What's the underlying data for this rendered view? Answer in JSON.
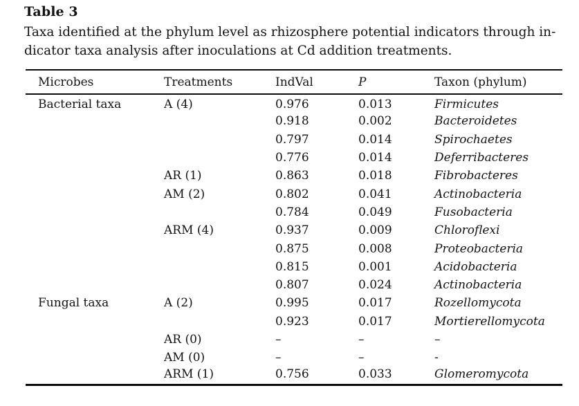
{
  "title": "Table 3",
  "caption": {
    "line1": "Taxa identified at the phylum level as rhizosphere potential indicators through in-",
    "line2": "dicator taxa analysis after inoculations at Cd addition treatments."
  },
  "table": {
    "columns": [
      "Microbes",
      "Treatments",
      "IndVal",
      "P",
      "Taxon (phylum)"
    ],
    "rows": [
      {
        "microbes": "Bacterial taxa",
        "treatment": "A (4)",
        "indval": "0.976",
        "p": "0.013",
        "taxon": "Firmicutes"
      },
      {
        "microbes": "",
        "treatment": "",
        "indval": "0.918",
        "p": "0.002",
        "taxon": "Bacteroidetes"
      },
      {
        "microbes": "",
        "treatment": "",
        "indval": "0.797",
        "p": "0.014",
        "taxon": "Spirochaetes"
      },
      {
        "microbes": "",
        "treatment": "",
        "indval": "0.776",
        "p": "0.014",
        "taxon": "Deferribacteres"
      },
      {
        "microbes": "",
        "treatment": "AR (1)",
        "indval": "0.863",
        "p": "0.018",
        "taxon": "Fibrobacteres"
      },
      {
        "microbes": "",
        "treatment": "AM (2)",
        "indval": "0.802",
        "p": "0.041",
        "taxon": "Actinobacteria"
      },
      {
        "microbes": "",
        "treatment": "",
        "indval": "0.784",
        "p": "0.049",
        "taxon": "Fusobacteria"
      },
      {
        "microbes": "",
        "treatment": "ARM (4)",
        "indval": "0.937",
        "p": "0.009",
        "taxon": "Chloroflexi"
      },
      {
        "microbes": "",
        "treatment": "",
        "indval": "0.875",
        "p": "0.008",
        "taxon": "Proteobacteria"
      },
      {
        "microbes": "",
        "treatment": "",
        "indval": "0.815",
        "p": "0.001",
        "taxon": "Acidobacteria"
      },
      {
        "microbes": "",
        "treatment": "",
        "indval": "0.807",
        "p": "0.024",
        "taxon": "Actinobacteria"
      },
      {
        "microbes": "Fungal taxa",
        "treatment": "A (2)",
        "indval": "0.995",
        "p": "0.017",
        "taxon": "Rozellomycota"
      },
      {
        "microbes": "",
        "treatment": "",
        "indval": "0.923",
        "p": "0.017",
        "taxon": "Mortierellomycota"
      },
      {
        "microbes": "",
        "treatment": "AR (0)",
        "indval": "–",
        "p": "–",
        "taxon": "–"
      },
      {
        "microbes": "",
        "treatment": "AM (0)",
        "indval": "–",
        "p": "–",
        "taxon": "-"
      },
      {
        "microbes": "",
        "treatment": "ARM (1)",
        "indval": "0.756",
        "p": "0.033",
        "taxon": "Glomeromycota"
      }
    ]
  },
  "colors": {
    "background": "#ffffff",
    "text": "#131313",
    "rule": "#0a0a0a"
  }
}
